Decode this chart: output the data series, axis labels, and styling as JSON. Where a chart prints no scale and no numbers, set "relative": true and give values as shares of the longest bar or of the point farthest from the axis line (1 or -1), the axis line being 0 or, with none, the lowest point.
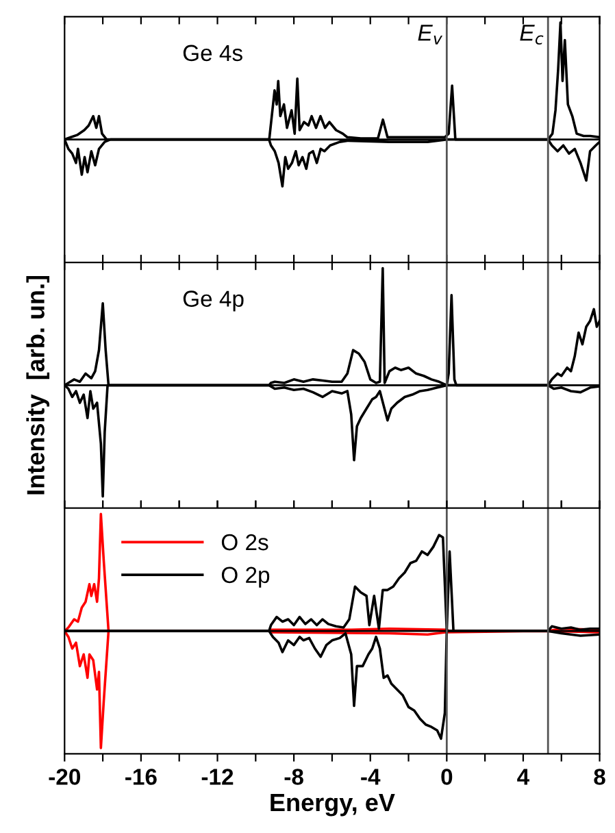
{
  "chart_data": [
    {
      "type": "line",
      "relative": true,
      "xlim": [
        -20,
        8
      ],
      "xticks": [
        -20,
        {
          "value": -18,
          "label": null
        },
        -16,
        {
          "value": -14,
          "label": null
        },
        -12,
        {
          "value": -10,
          "label": null
        },
        -8,
        {
          "value": -6,
          "label": null
        },
        -4,
        {
          "value": -2,
          "label": null
        },
        0,
        {
          "value": 2,
          "label": null
        },
        4,
        {
          "value": 6,
          "label": null
        },
        8
      ],
      "tick_labels": false,
      "annotations": [
        "Ge 4s"
      ],
      "ref_lines": [
        {
          "axis": "x",
          "value": 0,
          "label": "E$_{v}$",
          "color": "#555555"
        },
        {
          "axis": "x",
          "value": 5.3,
          "label": "E$_{c}$",
          "color": "#555555"
        }
      ],
      "series": [
        {
          "color": "#000000",
          "x": [
            -20,
            -19.67,
            -19.32,
            -18.97,
            -18.74,
            -18.5,
            -18.34,
            -18.2,
            -18.04,
            -17.8,
            -9.29,
            -9.01,
            -8.9,
            -8.82,
            -8.71,
            -8.52,
            -8.36,
            -8.12,
            -7.96,
            -7.82,
            -7.7,
            -7.47,
            -7.24,
            -7.07,
            -6.84,
            -6.61,
            -6.37,
            -6.14,
            -5.79,
            -5.44,
            -5.21,
            -4.5,
            -3.6,
            -3.34,
            -3.1,
            -2,
            -1,
            -0.1,
            0.1,
            0.28,
            0.45,
            5.3,
            5.53,
            5.69,
            5.83,
            5.95,
            6.06,
            6.18,
            6.34,
            6.57,
            6.8,
            7.16,
            7.51,
            8
          ],
          "values": [
            0,
            0.02,
            0.04,
            0.08,
            0.12,
            0.2,
            0.1,
            0.2,
            0.05,
            0,
            0,
            0.42,
            0.3,
            0.5,
            0.2,
            0.3,
            0.1,
            0.25,
            0.05,
            0.52,
            0.08,
            0.15,
            0.12,
            0.2,
            0.1,
            0.2,
            0.1,
            0.15,
            0.08,
            0.05,
            0.02,
            0.01,
            0.01,
            0.17,
            0.02,
            0.02,
            0.02,
            0.02,
            0.05,
            0.46,
            0,
            0,
            0.05,
            0.25,
            0.6,
            1.0,
            0.5,
            0.85,
            0.3,
            0.2,
            0.05,
            0.03,
            0.03,
            0.02
          ]
        },
        {
          "color": "#000000",
          "x": [
            -20,
            -19.8,
            -19.6,
            -19.4,
            -19.3,
            -19.1,
            -18.95,
            -18.8,
            -18.6,
            -18.4,
            -18.2,
            -17.9,
            -17.6,
            -9.3,
            -9.2,
            -9.0,
            -8.8,
            -8.6,
            -8.45,
            -8.3,
            -8.1,
            -7.9,
            -7.75,
            -7.55,
            -7.35,
            -7.2,
            -7.0,
            -6.8,
            -6.6,
            -6.4,
            -6.1,
            -5.6,
            -5.2,
            -3,
            -1,
            0,
            5.3,
            5.5,
            5.8,
            6.1,
            6.4,
            6.7,
            7.0,
            7.3,
            7.5,
            7.8,
            8
          ],
          "values": [
            0,
            -0.08,
            -0.12,
            -0.2,
            -0.08,
            -0.3,
            -0.15,
            -0.28,
            -0.1,
            -0.22,
            -0.08,
            -0.02,
            0,
            0,
            -0.05,
            -0.1,
            -0.2,
            -0.4,
            -0.15,
            -0.25,
            -0.2,
            -0.1,
            -0.22,
            -0.15,
            -0.25,
            -0.12,
            -0.1,
            -0.2,
            -0.08,
            -0.1,
            -0.05,
            -0.02,
            -0.01,
            -0.02,
            -0.02,
            0,
            0,
            -0.05,
            -0.1,
            -0.05,
            -0.12,
            -0.08,
            -0.2,
            -0.35,
            -0.1,
            -0.05,
            -0.02
          ]
        }
      ]
    },
    {
      "type": "line",
      "relative": true,
      "xlim": [
        -20,
        8
      ],
      "xticks": [
        -20,
        {
          "value": -18,
          "label": null
        },
        -16,
        {
          "value": -14,
          "label": null
        },
        -12,
        {
          "value": -10,
          "label": null
        },
        -8,
        {
          "value": -6,
          "label": null
        },
        -4,
        {
          "value": -2,
          "label": null
        },
        0,
        {
          "value": 2,
          "label": null
        },
        4,
        {
          "value": 6,
          "label": null
        },
        8
      ],
      "tick_labels": false,
      "ylabel": "Intensity  [arb. un.]",
      "annotations": [
        "Ge 4p"
      ],
      "ref_lines": [
        {
          "axis": "x",
          "value": 0,
          "color": "#555555"
        },
        {
          "axis": "x",
          "value": 5.3,
          "color": "#555555"
        }
      ],
      "series": [
        {
          "color": "#000000",
          "x": [
            -20,
            -19.8,
            -19.5,
            -19.2,
            -18.9,
            -18.6,
            -18.4,
            -18.2,
            -18.0,
            -17.85,
            -17.7,
            -9.3,
            -9.2,
            -9,
            -8.5,
            -8,
            -7.5,
            -7,
            -6.5,
            -6,
            -5.5,
            -5.2,
            -4.9,
            -4.6,
            -4.3,
            -4.0,
            -3.7,
            -3.5,
            -3.35,
            -3.25,
            -3.0,
            -2.7,
            -2.4,
            -2.0,
            -1.6,
            -1.2,
            -0.8,
            -0.4,
            0,
            0.1,
            0.25,
            0.4,
            0.5,
            5.3,
            5.5,
            5.8,
            6.0,
            6.3,
            6.5,
            6.7,
            6.9,
            7.1,
            7.3,
            7.5,
            7.7,
            7.85,
            8
          ],
          "values": [
            0,
            0.02,
            0.05,
            0.03,
            0.1,
            0.06,
            0.12,
            0.3,
            0.7,
            0.3,
            0,
            0,
            0.02,
            0.03,
            0.02,
            0.05,
            0.03,
            0.05,
            0.04,
            0.03,
            0.03,
            0.1,
            0.3,
            0.27,
            0.2,
            0.05,
            0.02,
            0.03,
            1.0,
            0.02,
            0.12,
            0.15,
            0.13,
            0.15,
            0.1,
            0.08,
            0.05,
            0.03,
            0,
            0.1,
            0.77,
            0.05,
            0,
            0,
            0.05,
            0.1,
            0.08,
            0.15,
            0.12,
            0.25,
            0.45,
            0.35,
            0.5,
            0.55,
            0.65,
            0.5,
            0.55
          ]
        },
        {
          "color": "#000000",
          "x": [
            -20,
            -19.8,
            -19.6,
            -19.4,
            -19.2,
            -19.0,
            -18.8,
            -18.65,
            -18.5,
            -18.3,
            -18.1,
            -18.0,
            -17.9,
            -17.75,
            -9.3,
            -9,
            -8.5,
            -8,
            -7.5,
            -7,
            -6.5,
            -6,
            -5.5,
            -5.2,
            -5.0,
            -4.85,
            -4.7,
            -4.5,
            -4.2,
            -3.9,
            -3.7,
            -3.5,
            -3.1,
            -2.9,
            -2.6,
            -2.2,
            -1.8,
            -1.4,
            -1.0,
            -0.5,
            0,
            5.3,
            5.6,
            6,
            6.5,
            7,
            7.5,
            8
          ],
          "values": [
            0,
            -0.03,
            -0.1,
            -0.05,
            -0.15,
            -0.08,
            -0.28,
            -0.05,
            -0.2,
            -0.15,
            -0.5,
            -0.95,
            -0.4,
            0,
            0,
            -0.03,
            -0.02,
            -0.04,
            -0.03,
            -0.06,
            -0.1,
            -0.05,
            -0.07,
            -0.05,
            -0.25,
            -0.64,
            -0.35,
            -0.28,
            -0.2,
            -0.12,
            -0.1,
            -0.05,
            -0.3,
            -0.2,
            -0.15,
            -0.1,
            -0.08,
            -0.05,
            -0.04,
            -0.02,
            0,
            0,
            -0.03,
            -0.02,
            -0.05,
            -0.06,
            -0.02,
            -0.01
          ]
        }
      ]
    },
    {
      "type": "line",
      "relative": true,
      "xlim": [
        -20,
        8
      ],
      "xticks": [
        -20,
        {
          "value": -18,
          "label": null
        },
        -16,
        {
          "value": -14,
          "label": null
        },
        -12,
        {
          "value": -10,
          "label": null
        },
        -8,
        {
          "value": -6,
          "label": null
        },
        -4,
        {
          "value": -2,
          "label": null
        },
        0,
        {
          "value": 2,
          "label": null
        },
        4,
        {
          "value": 6,
          "label": null
        },
        8
      ],
      "tick_labels": "x",
      "xlabel": "Energy, eV",
      "legend": "top left",
      "ref_lines": [
        {
          "axis": "x",
          "value": 0,
          "color": "#555555"
        },
        {
          "axis": "x",
          "value": 5.3,
          "color": "#555555"
        }
      ],
      "series": [
        {
          "name": "O 2s",
          "color": "#ff0000",
          "x": [
            -20,
            -19.8,
            -19.5,
            -19.3,
            -19.1,
            -18.9,
            -18.7,
            -18.6,
            -18.45,
            -18.3,
            -18.2,
            -18.1,
            -17.95,
            -17.7,
            -9.3,
            -9.2,
            -5,
            -3,
            0,
            0.1,
            5.3,
            6,
            8
          ],
          "values": [
            0,
            0.03,
            0.1,
            0.08,
            0.2,
            0.25,
            0.4,
            0.3,
            0.4,
            0.25,
            0.45,
            1.0,
            0.6,
            0,
            0,
            0.01,
            0.01,
            0.02,
            0.01,
            0,
            0,
            0.02,
            0.01
          ]
        },
        {
          "color": "#ff0000",
          "x": [
            -20,
            -19.8,
            -19.6,
            -19.4,
            -19.2,
            -19.0,
            -18.8,
            -18.7,
            -18.5,
            -18.3,
            -18.2,
            -18.1,
            -17.95,
            -17.7,
            -9.3,
            -9.2,
            -3,
            -1,
            0,
            5.3,
            8
          ],
          "values": [
            0,
            -0.05,
            -0.15,
            -0.1,
            -0.3,
            -0.2,
            -0.4,
            -0.2,
            -0.25,
            -0.5,
            -0.35,
            -1.0,
            -0.6,
            0,
            0,
            -0.01,
            -0.02,
            -0.03,
            -0.01,
            0,
            -0.01
          ]
        },
        {
          "name": "O 2p",
          "color": "#000000",
          "x": [
            -20,
            -9.3,
            -9.2,
            -8.9,
            -8.6,
            -8.3,
            -8.0,
            -7.7,
            -7.4,
            -7.1,
            -6.8,
            -6.5,
            -6.2,
            -5.8,
            -5.4,
            -5.1,
            -4.8,
            -4.5,
            -4.2,
            -4.05,
            -3.8,
            -3.55,
            -3.35,
            -3.1,
            -2.8,
            -2.5,
            -2.2,
            -1.9,
            -1.6,
            -1.3,
            -1.0,
            -0.7,
            -0.4,
            -0.2,
            0,
            0.15,
            0.35,
            5.3,
            5.5,
            6,
            6.5,
            7,
            7.5,
            8
          ],
          "values": [
            0,
            0,
            0.05,
            0.12,
            0.08,
            0.1,
            0.05,
            0.12,
            0.06,
            0.1,
            0.05,
            0.1,
            0.06,
            0.04,
            0.03,
            0.1,
            0.38,
            0.33,
            0.3,
            0.05,
            0.3,
            0.02,
            0.35,
            0.35,
            0.38,
            0.45,
            0.5,
            0.58,
            0.6,
            0.68,
            0.65,
            0.72,
            0.82,
            0.8,
            0,
            0.68,
            0,
            0,
            0.04,
            0.02,
            0.03,
            0.01,
            0.02,
            0.02
          ]
        },
        {
          "color": "#000000",
          "x": [
            -20,
            -9.3,
            -9.1,
            -8.8,
            -8.6,
            -8.3,
            -8.0,
            -7.7,
            -7.5,
            -7.2,
            -6.9,
            -6.6,
            -6.3,
            -6.0,
            -5.6,
            -5.3,
            -5.0,
            -4.85,
            -4.7,
            -4.4,
            -4.1,
            -3.9,
            -3.7,
            -3.5,
            -3.3,
            -3.1,
            -2.9,
            -2.6,
            -2.3,
            -2.0,
            -1.7,
            -1.4,
            -1.1,
            -0.8,
            -0.5,
            -0.3,
            -0.1,
            0,
            5.3,
            6,
            7,
            8
          ],
          "values": [
            0,
            0,
            -0.05,
            -0.1,
            -0.18,
            -0.08,
            -0.12,
            -0.05,
            -0.08,
            -0.06,
            -0.15,
            -0.22,
            -0.12,
            -0.08,
            -0.06,
            -0.02,
            -0.2,
            -0.64,
            -0.3,
            -0.3,
            -0.2,
            -0.15,
            -0.05,
            -0.15,
            -0.4,
            -0.38,
            -0.45,
            -0.5,
            -0.55,
            -0.65,
            -0.68,
            -0.75,
            -0.8,
            -0.82,
            -0.85,
            -0.92,
            -0.7,
            0,
            0,
            -0.02,
            -0.04,
            -0.03
          ]
        }
      ]
    }
  ]
}
